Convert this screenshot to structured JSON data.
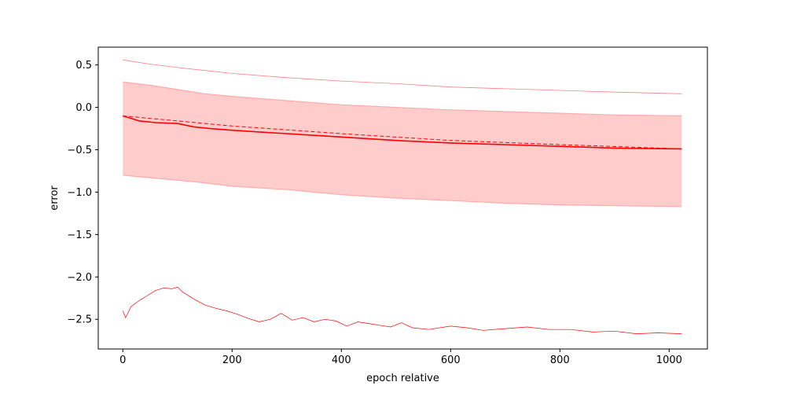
{
  "chart_data": {
    "type": "line",
    "title": "",
    "xlabel": "epoch relative",
    "ylabel": "error",
    "xlim": [
      -45,
      1070
    ],
    "ylim": [
      -2.85,
      0.71
    ],
    "x_ticks": [
      0,
      200,
      400,
      600,
      800,
      1000
    ],
    "y_ticks": [
      0.5,
      0.0,
      -0.5,
      -1.0,
      -1.5,
      -2.0,
      -2.5
    ],
    "x_tick_labels": [
      "0",
      "200",
      "400",
      "600",
      "800",
      "1000"
    ],
    "y_tick_labels": [
      "0.5",
      "0.0",
      "−0.5",
      "−1.0",
      "−1.5",
      "−2.0",
      "−2.5"
    ],
    "grid": false,
    "legend": "none",
    "colors": {
      "line": "#ff0000",
      "band_fill": "#ffcccc",
      "band_edge": "#ffaaaa",
      "max_line": "#ff8080"
    },
    "series": [
      {
        "role": "max",
        "style": "thin-solid",
        "x": [
          0,
          50,
          100,
          200,
          300,
          400,
          500,
          600,
          700,
          800,
          900,
          1023
        ],
        "values": [
          0.56,
          0.51,
          0.47,
          0.4,
          0.35,
          0.31,
          0.28,
          0.24,
          0.22,
          0.2,
          0.18,
          0.16
        ]
      },
      {
        "role": "band-upper",
        "style": "fill-edge",
        "x": [
          0,
          50,
          100,
          150,
          200,
          300,
          400,
          500,
          600,
          700,
          800,
          900,
          1023
        ],
        "values": [
          0.3,
          0.26,
          0.21,
          0.16,
          0.13,
          0.08,
          0.03,
          0.0,
          -0.03,
          -0.05,
          -0.07,
          -0.09,
          -0.1
        ]
      },
      {
        "role": "band-lower",
        "style": "fill-edge",
        "x": [
          0,
          50,
          100,
          150,
          200,
          300,
          400,
          500,
          600,
          700,
          800,
          900,
          1023
        ],
        "values": [
          -0.8,
          -0.83,
          -0.86,
          -0.89,
          -0.93,
          -0.97,
          -1.03,
          -1.07,
          -1.1,
          -1.13,
          -1.15,
          -1.16,
          -1.17
        ]
      },
      {
        "role": "mean",
        "style": "solid",
        "x": [
          0,
          10,
          30,
          60,
          100,
          130,
          160,
          200,
          250,
          300,
          350,
          400,
          500,
          600,
          700,
          800,
          900,
          1023
        ],
        "values": [
          -0.1,
          -0.12,
          -0.16,
          -0.18,
          -0.19,
          -0.23,
          -0.25,
          -0.27,
          -0.29,
          -0.31,
          -0.33,
          -0.35,
          -0.39,
          -0.42,
          -0.44,
          -0.46,
          -0.48,
          -0.49
        ]
      },
      {
        "role": "trend",
        "style": "dashed",
        "x": [
          0,
          200,
          400,
          600,
          800,
          1023
        ],
        "values": [
          -0.1,
          -0.22,
          -0.31,
          -0.39,
          -0.44,
          -0.49
        ]
      },
      {
        "role": "min",
        "style": "thin-noisy",
        "x": [
          0,
          5,
          15,
          30,
          45,
          60,
          75,
          90,
          100,
          110,
          130,
          150,
          170,
          190,
          210,
          230,
          250,
          270,
          290,
          310,
          330,
          350,
          370,
          390,
          410,
          430,
          450,
          470,
          490,
          510,
          530,
          560,
          600,
          630,
          660,
          700,
          740,
          780,
          820,
          860,
          900,
          940,
          980,
          1023
        ],
        "values": [
          -2.4,
          -2.48,
          -2.35,
          -2.28,
          -2.22,
          -2.16,
          -2.13,
          -2.14,
          -2.12,
          -2.18,
          -2.26,
          -2.33,
          -2.37,
          -2.4,
          -2.44,
          -2.49,
          -2.53,
          -2.5,
          -2.43,
          -2.51,
          -2.48,
          -2.53,
          -2.5,
          -2.52,
          -2.58,
          -2.53,
          -2.55,
          -2.57,
          -2.59,
          -2.54,
          -2.6,
          -2.62,
          -2.58,
          -2.6,
          -2.63,
          -2.61,
          -2.59,
          -2.62,
          -2.62,
          -2.65,
          -2.64,
          -2.67,
          -2.66,
          -2.67
        ]
      }
    ]
  }
}
